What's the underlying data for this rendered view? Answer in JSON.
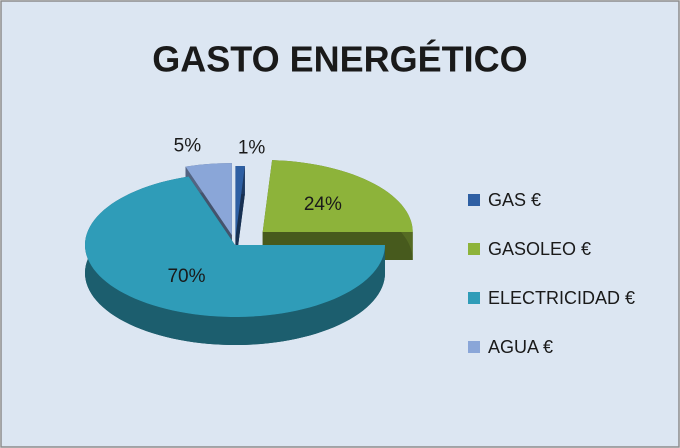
{
  "chart_data": {
    "type": "pie3d",
    "title": "GASTO ENERGÉTICO",
    "categories": [
      "GAS €",
      "GASOLEO €",
      "ELECTRICIDAD €",
      "AGUA €"
    ],
    "values": [
      1,
      24,
      70,
      5
    ],
    "value_labels": [
      "1%",
      "24%",
      "70%",
      "5%"
    ],
    "colors": [
      "#2e5fa3",
      "#8db33a",
      "#2f9cb8",
      "#8aa6d8"
    ],
    "legend": "right"
  }
}
